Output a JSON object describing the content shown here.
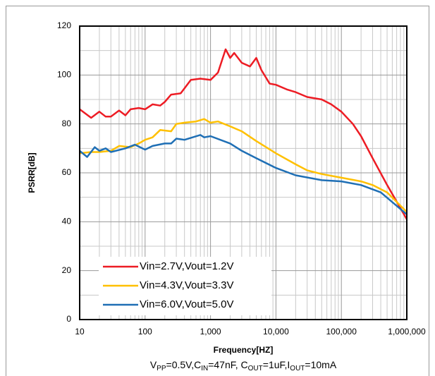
{
  "chart_data": {
    "type": "line",
    "x_label": "Frequency[HZ]",
    "y_label": "PSRR[dB]",
    "subtitle": [
      {
        "text": "V"
      },
      {
        "sub": "PP"
      },
      {
        "text": "=0.5V,C"
      },
      {
        "sub": "IN"
      },
      {
        "text": "=47nF, C"
      },
      {
        "sub": "OUT"
      },
      {
        "text": "=1uF,I"
      },
      {
        "sub": "OUT"
      },
      {
        "text": "=10mA"
      }
    ],
    "xlog": true,
    "xlim": [
      10,
      1000000
    ],
    "xticks": [
      10,
      100,
      {
        "value": 1000,
        "label": "1,000"
      },
      {
        "value": 10000,
        "label": "10,000"
      },
      {
        "value": 100000,
        "label": "100,000"
      },
      {
        "value": 1000000,
        "label": "1,000,000"
      }
    ],
    "ylim": [
      0,
      120
    ],
    "yticks": [
      0,
      20,
      40,
      60,
      80,
      100,
      120
    ],
    "grid": true,
    "minor_grid": true,
    "legend": "lower left",
    "series": [
      {
        "name": "Vin=2.7V,Vout=1.2V",
        "color": "#ed1c24",
        "x": [
          10,
          15,
          20,
          25,
          30,
          40,
          50,
          60,
          80,
          100,
          130,
          170,
          200,
          250,
          350,
          500,
          700,
          1000,
          1300,
          1700,
          2000,
          2300,
          3000,
          4000,
          5000,
          6000,
          8000,
          10000,
          15000,
          20000,
          30000,
          50000,
          70000,
          100000,
          150000,
          200000,
          300000,
          500000,
          1000000
        ],
        "values": [
          86,
          82.5,
          85,
          83,
          83,
          85.5,
          83.5,
          86,
          86.5,
          86,
          88,
          87.5,
          89,
          92,
          92.5,
          98,
          98.5,
          98,
          101,
          110.5,
          107,
          109,
          105,
          103.5,
          107,
          102,
          96.5,
          96,
          94,
          93,
          91,
          90,
          88,
          85,
          80,
          75,
          66,
          55,
          41
        ]
      },
      {
        "name": "Vin=4.3V,Vout=3.3V",
        "color": "#ffc000",
        "x": [
          10,
          15,
          20,
          30,
          40,
          60,
          80,
          100,
          130,
          170,
          250,
          300,
          400,
          600,
          800,
          1000,
          1300,
          2000,
          3000,
          5000,
          10000,
          20000,
          30000,
          50000,
          100000,
          200000,
          300000,
          500000,
          1000000
        ],
        "values": [
          68,
          68.5,
          68.5,
          69,
          71,
          70.5,
          72,
          73.5,
          74.5,
          77.5,
          77,
          80,
          80.5,
          81,
          82,
          80.5,
          81,
          79,
          77,
          73,
          68,
          63.5,
          61,
          59.5,
          58,
          56.5,
          55,
          52,
          44
        ]
      },
      {
        "name": "Vin=6.0V,Vout=5.0V",
        "color": "#1f6fb5",
        "x": [
          10,
          13,
          17,
          20,
          25,
          30,
          50,
          70,
          100,
          130,
          200,
          250,
          300,
          400,
          700,
          800,
          1000,
          2000,
          3000,
          5000,
          10000,
          20000,
          50000,
          100000,
          200000,
          400000,
          1000000
        ],
        "values": [
          69,
          66.5,
          70.5,
          69,
          70,
          68.5,
          70,
          71.5,
          69.5,
          71,
          72,
          72,
          74,
          73.5,
          75.5,
          74.5,
          75,
          72,
          69,
          66,
          62,
          59,
          57,
          56.5,
          55,
          52,
          43
        ]
      }
    ]
  }
}
